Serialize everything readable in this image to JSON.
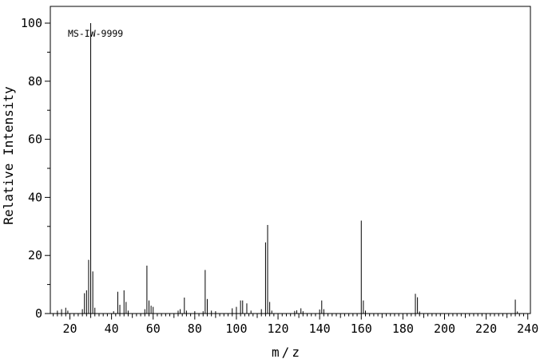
{
  "colors": {
    "foreground": "#000000",
    "background": "#ffffff"
  },
  "annotation": "MS-IW-9999",
  "chart_data": {
    "type": "bar",
    "title": "",
    "annotation": "MS-IW-9999",
    "xlabel": "m/z",
    "ylabel": "Relative Intensity",
    "xlim": [
      10.6,
      241.3
    ],
    "ylim": [
      0,
      105.8
    ],
    "x_tick_labels": [
      20,
      40,
      60,
      80,
      100,
      120,
      140,
      160,
      180,
      200,
      220,
      240
    ],
    "x_medium_tick_step": 10,
    "x_minor_tick_step": 2,
    "y_tick_labels": [
      0,
      20,
      40,
      60,
      80,
      100
    ],
    "y_minor_tick_step": 10,
    "grid": false,
    "legend": false,
    "series": [
      {
        "name": "relative-intensity",
        "points": [
          [
            14,
            1
          ],
          [
            16,
            1.5
          ],
          [
            18,
            2
          ],
          [
            19,
            1
          ],
          [
            26,
            1.5
          ],
          [
            27,
            7
          ],
          [
            28,
            8
          ],
          [
            29,
            18.5
          ],
          [
            30,
            100
          ],
          [
            31,
            14.5
          ],
          [
            32,
            2
          ],
          [
            41,
            0.8
          ],
          [
            43,
            7.5
          ],
          [
            44,
            3
          ],
          [
            46,
            8
          ],
          [
            47,
            4
          ],
          [
            48,
            1
          ],
          [
            56,
            1.5
          ],
          [
            57,
            16.5
          ],
          [
            58,
            4.5
          ],
          [
            59,
            2.7
          ],
          [
            60,
            2.3
          ],
          [
            72,
            1
          ],
          [
            73,
            1.5
          ],
          [
            75,
            5.5
          ],
          [
            76,
            1
          ],
          [
            80,
            0.8
          ],
          [
            84,
            0.8
          ],
          [
            85,
            15
          ],
          [
            86,
            5
          ],
          [
            88,
            1
          ],
          [
            90,
            0.8
          ],
          [
            98,
            1.8
          ],
          [
            100,
            2.3
          ],
          [
            102,
            4.5
          ],
          [
            103,
            4.5
          ],
          [
            105,
            3.5
          ],
          [
            107,
            1
          ],
          [
            112,
            1.5
          ],
          [
            114,
            24.5
          ],
          [
            115,
            30.5
          ],
          [
            116,
            4
          ],
          [
            117,
            1
          ],
          [
            128,
            0.9
          ],
          [
            129,
            1.1
          ],
          [
            131,
            1.8
          ],
          [
            132,
            0.8
          ],
          [
            140,
            1.4
          ],
          [
            141,
            4.5
          ],
          [
            142,
            1.5
          ],
          [
            160,
            32
          ],
          [
            161,
            4.5
          ],
          [
            162,
            1
          ],
          [
            186,
            6.8
          ],
          [
            187,
            5.6
          ],
          [
            188,
            0.7
          ],
          [
            234,
            4.8
          ],
          [
            235,
            0.7
          ]
        ]
      }
    ]
  }
}
